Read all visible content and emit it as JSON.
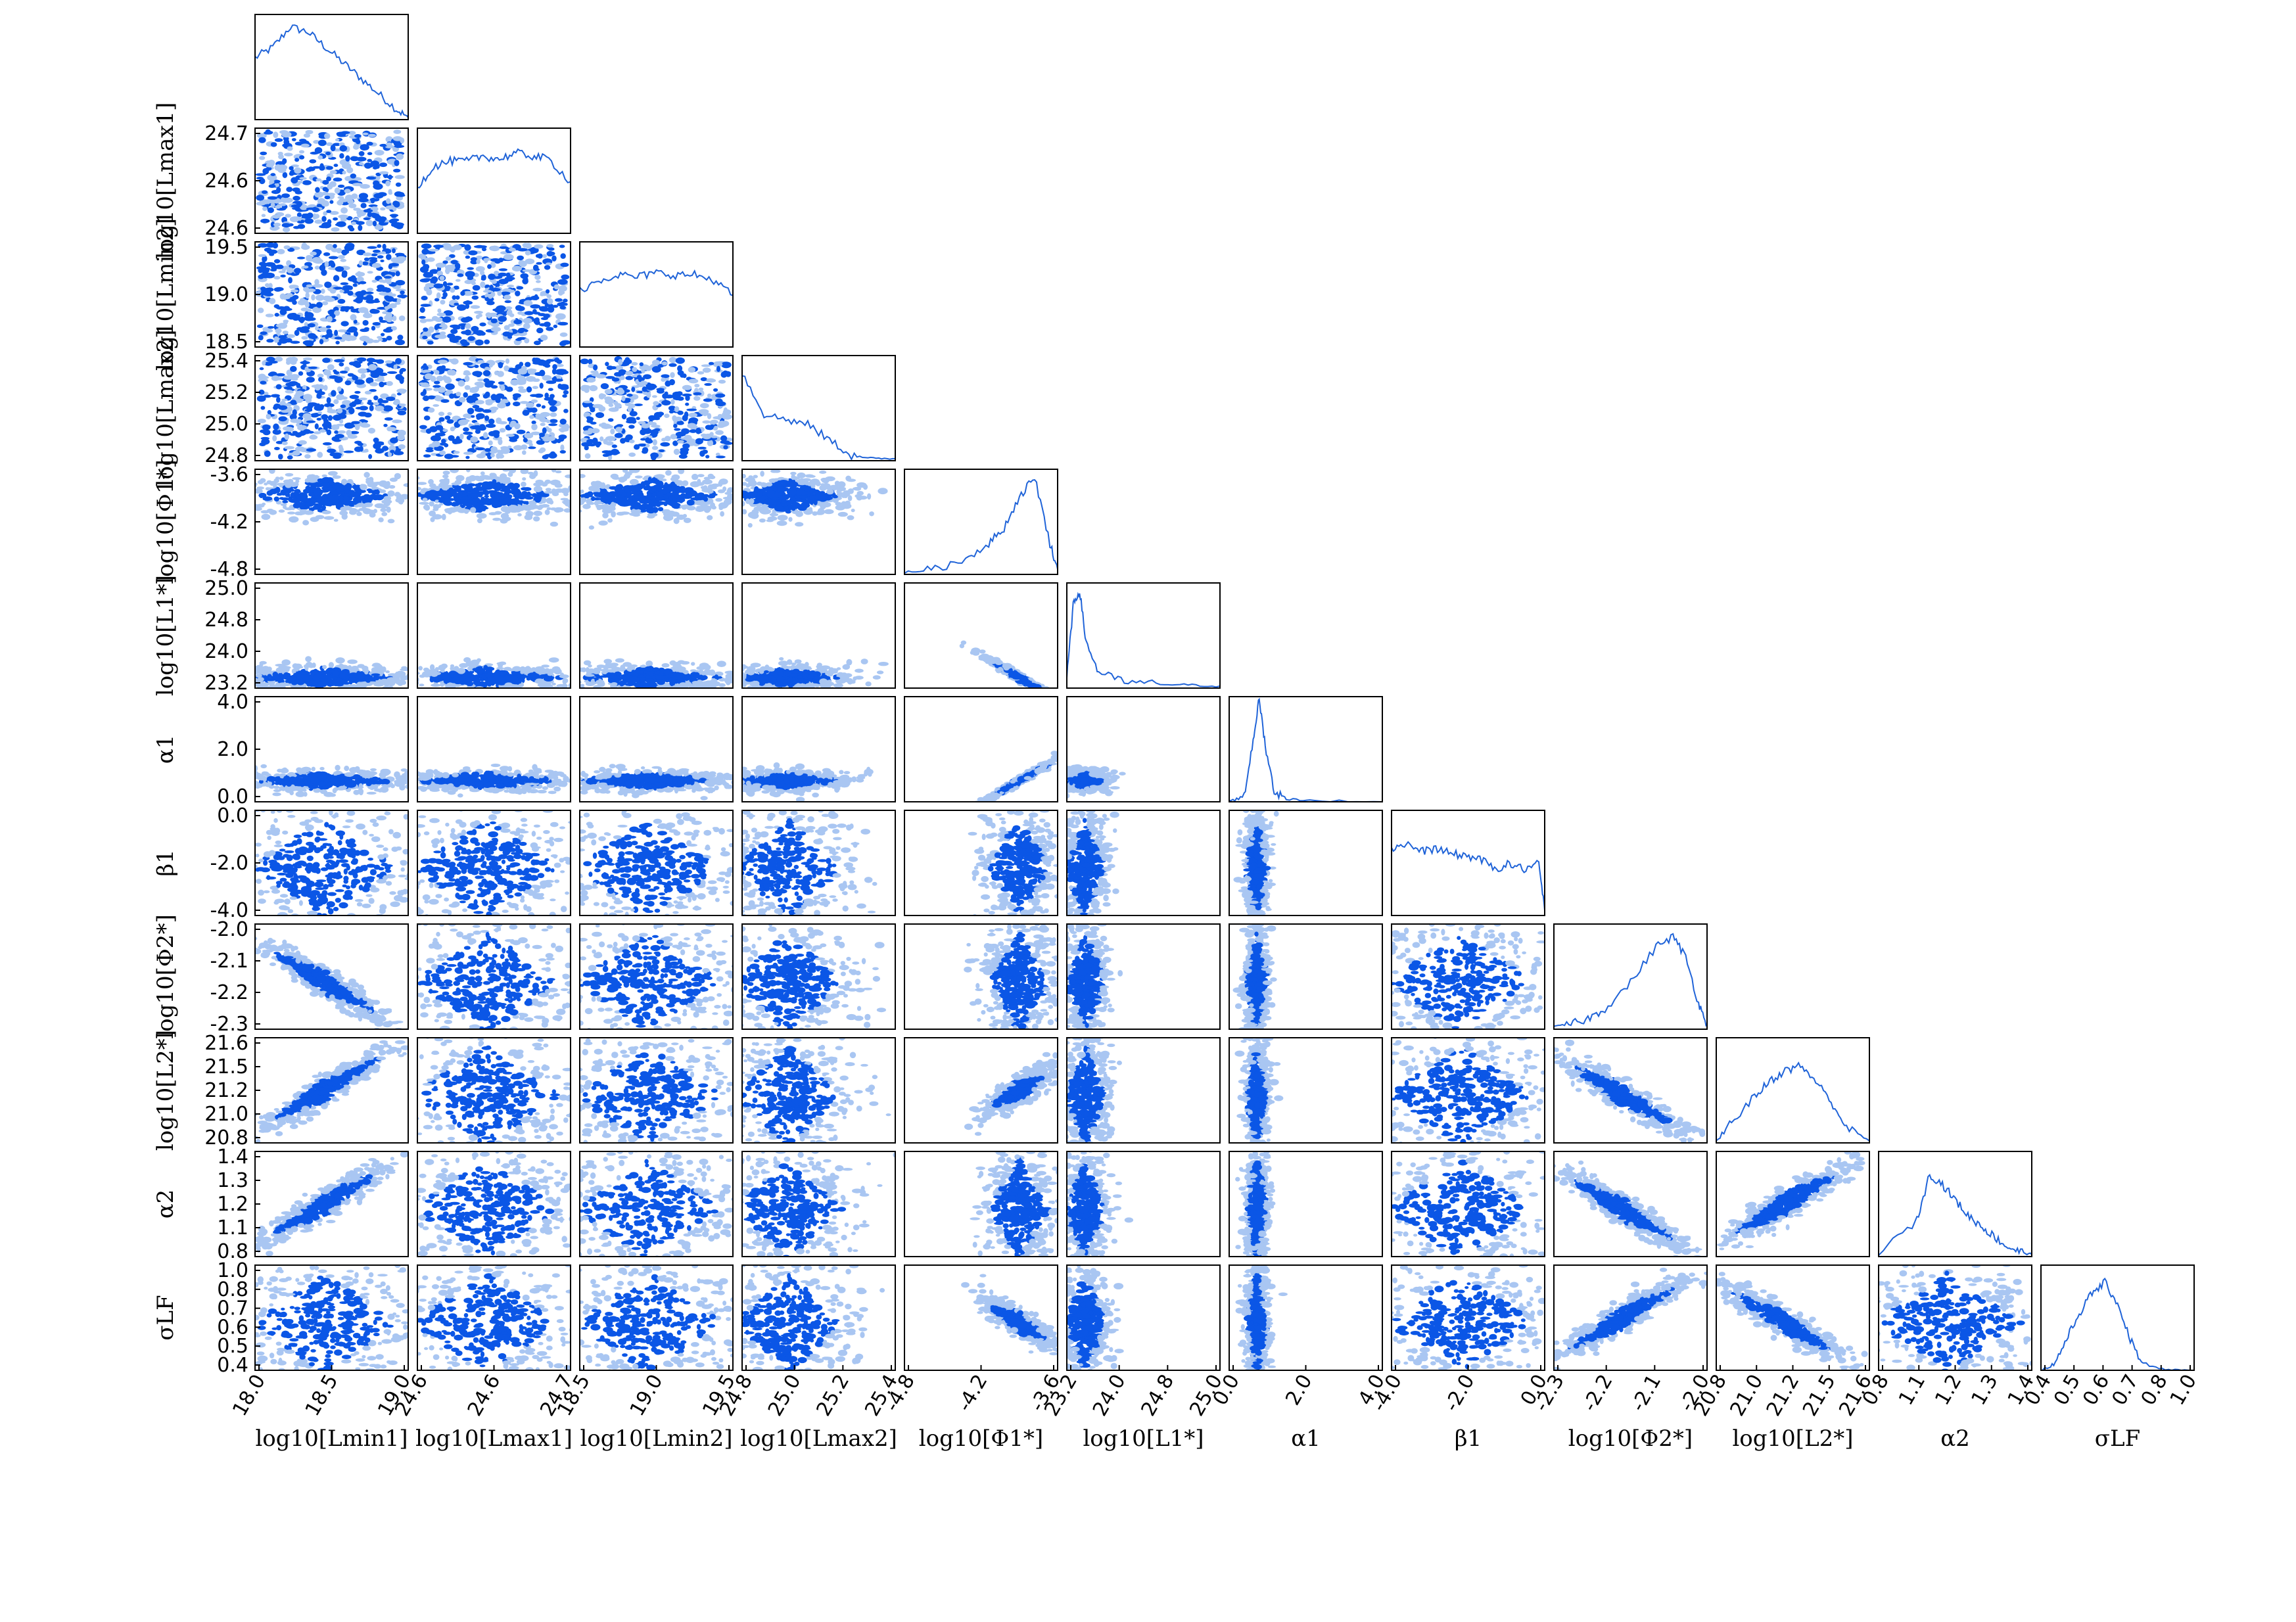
{
  "chart_data": {
    "type": "corner",
    "grid": false,
    "colors": {
      "line": "#1f63d8",
      "dense": "#0b56e6",
      "sparse": "#a9c6f2",
      "frame": "#000000"
    },
    "parameters": [
      {
        "name": "log_Lmin1",
        "label": "log10[Lmin1]",
        "ticks": [
          "18.0",
          "18.5",
          "19.0"
        ],
        "tick_values": [
          18.0,
          18.5,
          19.0
        ],
        "range": [
          18.0,
          19.3
        ]
      },
      {
        "name": "log_Lmax1",
        "label": "log10[Lmax1]",
        "ticks": [
          "24.6",
          "24.6",
          "24.7"
        ],
        "tick_values": [
          24.55,
          24.6,
          24.7
        ],
        "range": [
          24.5,
          24.78
        ]
      },
      {
        "name": "log_Lmin2",
        "label": "log10[Lmin2]",
        "ticks": [
          "18.5",
          "19.0",
          "19.5"
        ],
        "tick_values": [
          18.5,
          19.0,
          19.5
        ],
        "range": [
          18.2,
          19.8
        ]
      },
      {
        "name": "log_Lmax2",
        "label": "log10[Lmax2]",
        "ticks": [
          "24.8",
          "25.0",
          "25.2",
          "25.4"
        ],
        "tick_values": [
          24.8,
          25.0,
          25.2,
          25.4
        ],
        "range": [
          24.8,
          25.5
        ]
      },
      {
        "name": "log_Phi1",
        "label": "log10[Φ1*]",
        "ticks": [
          "-4.8",
          "-4.2",
          "-3.6"
        ],
        "tick_values": [
          -4.8,
          -4.2,
          -3.6
        ],
        "range": [
          -5.0,
          -3.0
        ]
      },
      {
        "name": "log_L1",
        "label": "log10[L1*]",
        "ticks": [
          "23.2",
          "24.0",
          "24.8",
          "25.0"
        ],
        "tick_values": [
          23.2,
          24.0,
          24.8,
          25.0
        ],
        "range": [
          22.6,
          25.0
        ]
      },
      {
        "name": "alpha1",
        "label": "α1",
        "ticks": [
          "0.0",
          "2.0",
          "4.0"
        ],
        "tick_values": [
          0.0,
          2.0,
          4.0
        ],
        "range": [
          -0.3,
          4.8
        ]
      },
      {
        "name": "beta1",
        "label": "β1",
        "ticks": [
          "-4.0",
          "-2.0",
          "0.0"
        ],
        "tick_values": [
          -4.0,
          -2.0,
          0.0
        ],
        "range": [
          -5.0,
          0.2
        ]
      },
      {
        "name": "log_Phi2",
        "label": "log10[Φ2*]",
        "ticks": [
          "-2.3",
          "-2.2",
          "-2.1",
          "-2.0"
        ],
        "tick_values": [
          -2.3,
          -2.2,
          -2.1,
          -2.0
        ],
        "range": [
          -2.32,
          -1.96
        ]
      },
      {
        "name": "log_L2",
        "label": "log10[L2*]",
        "ticks": [
          "20.8",
          "21.0",
          "21.2",
          "21.5",
          "21.6"
        ],
        "tick_values": [
          20.8,
          21.0,
          21.2,
          21.5,
          21.6
        ],
        "range": [
          20.75,
          21.75
        ]
      },
      {
        "name": "alpha2",
        "label": "α2",
        "ticks": [
          "0.8",
          "1.1",
          "1.2",
          "1.3",
          "1.4"
        ],
        "tick_values": [
          0.8,
          1.1,
          1.2,
          1.3,
          1.4
        ],
        "range": [
          0.8,
          1.4
        ]
      },
      {
        "name": "sigma_LF",
        "label": "σLF",
        "ticks": [
          "0.4",
          "0.5",
          "0.6",
          "0.7",
          "0.8",
          "1.0"
        ],
        "tick_values": [
          0.4,
          0.5,
          0.6,
          0.7,
          0.8,
          1.0
        ],
        "range": [
          0.4,
          1.0
        ]
      }
    ],
    "marginals": [
      {
        "x": [
          18.0,
          18.15,
          18.3,
          18.45,
          18.6,
          18.75,
          18.9,
          19.05,
          19.2,
          19.3
        ],
        "density": [
          0.6,
          0.7,
          0.9,
          0.85,
          0.7,
          0.55,
          0.4,
          0.25,
          0.1,
          0.02
        ]
      },
      {
        "x": [
          24.5,
          24.53,
          24.56,
          24.59,
          24.62,
          24.65,
          24.68,
          24.71,
          24.74,
          24.78
        ],
        "density": [
          0.45,
          0.65,
          0.7,
          0.7,
          0.75,
          0.72,
          0.78,
          0.75,
          0.72,
          0.5
        ]
      },
      {
        "x": [
          18.2,
          18.4,
          18.6,
          18.8,
          19.0,
          19.2,
          19.4,
          19.6,
          19.8
        ],
        "density": [
          0.55,
          0.65,
          0.7,
          0.68,
          0.72,
          0.7,
          0.7,
          0.65,
          0.5
        ]
      },
      {
        "x": [
          24.8,
          24.9,
          25.0,
          25.1,
          25.2,
          25.3,
          25.4,
          25.5
        ],
        "density": [
          0.85,
          0.45,
          0.4,
          0.35,
          0.2,
          0.05,
          0.02,
          0.02
        ]
      },
      {
        "x": [
          -5.0,
          -4.6,
          -4.2,
          -3.9,
          -3.7,
          -3.5,
          -3.3,
          -3.1,
          -3.0
        ],
        "density": [
          0.02,
          0.05,
          0.15,
          0.3,
          0.45,
          0.75,
          0.95,
          0.3,
          0.05
        ]
      },
      {
        "x": [
          22.6,
          22.7,
          22.8,
          22.9,
          23.1,
          23.5,
          24.0,
          24.5,
          25.0
        ],
        "density": [
          0.1,
          0.8,
          0.95,
          0.45,
          0.15,
          0.06,
          0.04,
          0.03,
          0.02
        ]
      },
      {
        "x": [
          -0.3,
          0.2,
          0.5,
          0.7,
          0.9,
          1.2,
          1.6,
          2.5,
          4.8
        ],
        "density": [
          0.0,
          0.05,
          0.6,
          1.0,
          0.55,
          0.1,
          0.03,
          0.01,
          0.0
        ]
      },
      {
        "x": [
          -5.0,
          -4.5,
          -4.0,
          -3.5,
          -3.0,
          -2.5,
          -2.0,
          -1.5,
          -1.0,
          -0.5,
          0.0,
          0.2
        ],
        "density": [
          0.65,
          0.7,
          0.62,
          0.65,
          0.6,
          0.58,
          0.55,
          0.45,
          0.5,
          0.45,
          0.5,
          0.05
        ]
      },
      {
        "x": [
          -2.32,
          -2.28,
          -2.24,
          -2.2,
          -2.14,
          -2.08,
          -2.04,
          -2.01,
          -1.98,
          -1.96
        ],
        "density": [
          0.02,
          0.05,
          0.1,
          0.2,
          0.45,
          0.8,
          0.9,
          0.7,
          0.25,
          0.05
        ]
      },
      {
        "x": [
          20.75,
          20.85,
          21.0,
          21.1,
          21.2,
          21.3,
          21.4,
          21.5,
          21.6,
          21.75
        ],
        "density": [
          0.02,
          0.2,
          0.45,
          0.6,
          0.7,
          0.75,
          0.6,
          0.4,
          0.15,
          0.02
        ]
      },
      {
        "x": [
          0.8,
          0.95,
          1.0,
          1.05,
          1.1,
          1.15,
          1.2,
          1.25,
          1.3,
          1.35,
          1.4
        ],
        "density": [
          0.02,
          0.35,
          0.8,
          0.7,
          0.55,
          0.4,
          0.3,
          0.2,
          0.1,
          0.05,
          0.02
        ]
      },
      {
        "x": [
          0.4,
          0.45,
          0.5,
          0.55,
          0.6,
          0.65,
          0.7,
          0.75,
          0.8,
          0.9,
          1.0
        ],
        "density": [
          0.0,
          0.05,
          0.3,
          0.55,
          0.75,
          0.85,
          0.65,
          0.3,
          0.05,
          0.0,
          0.0
        ]
      }
    ],
    "correlations": [
      {
        "pair": [
          "log_Lmin1",
          "log_Lmin2"
        ],
        "trend": "uniform"
      },
      {
        "pair": [
          "log_Phi1",
          "log_L1"
        ],
        "trend": "negative"
      },
      {
        "pair": [
          "log_Phi1",
          "alpha1"
        ],
        "trend": "positive"
      },
      {
        "pair": [
          "log_Lmin1",
          "log_Phi2"
        ],
        "trend": "negative"
      },
      {
        "pair": [
          "log_Lmin1",
          "log_L2"
        ],
        "trend": "positive"
      },
      {
        "pair": [
          "log_Lmin1",
          "alpha2"
        ],
        "trend": "positive"
      },
      {
        "pair": [
          "log_Phi1",
          "log_L2"
        ],
        "trend": "positive"
      },
      {
        "pair": [
          "log_Phi1",
          "sigma_LF"
        ],
        "trend": "negative"
      },
      {
        "pair": [
          "log_Phi2",
          "log_L2"
        ],
        "trend": "negative"
      },
      {
        "pair": [
          "log_Phi2",
          "alpha2"
        ],
        "trend": "negative"
      },
      {
        "pair": [
          "log_Phi2",
          "sigma_LF"
        ],
        "trend": "positive"
      },
      {
        "pair": [
          "log_L2",
          "alpha2"
        ],
        "trend": "positive"
      },
      {
        "pair": [
          "log_L2",
          "sigma_LF"
        ],
        "trend": "negative"
      }
    ]
  }
}
